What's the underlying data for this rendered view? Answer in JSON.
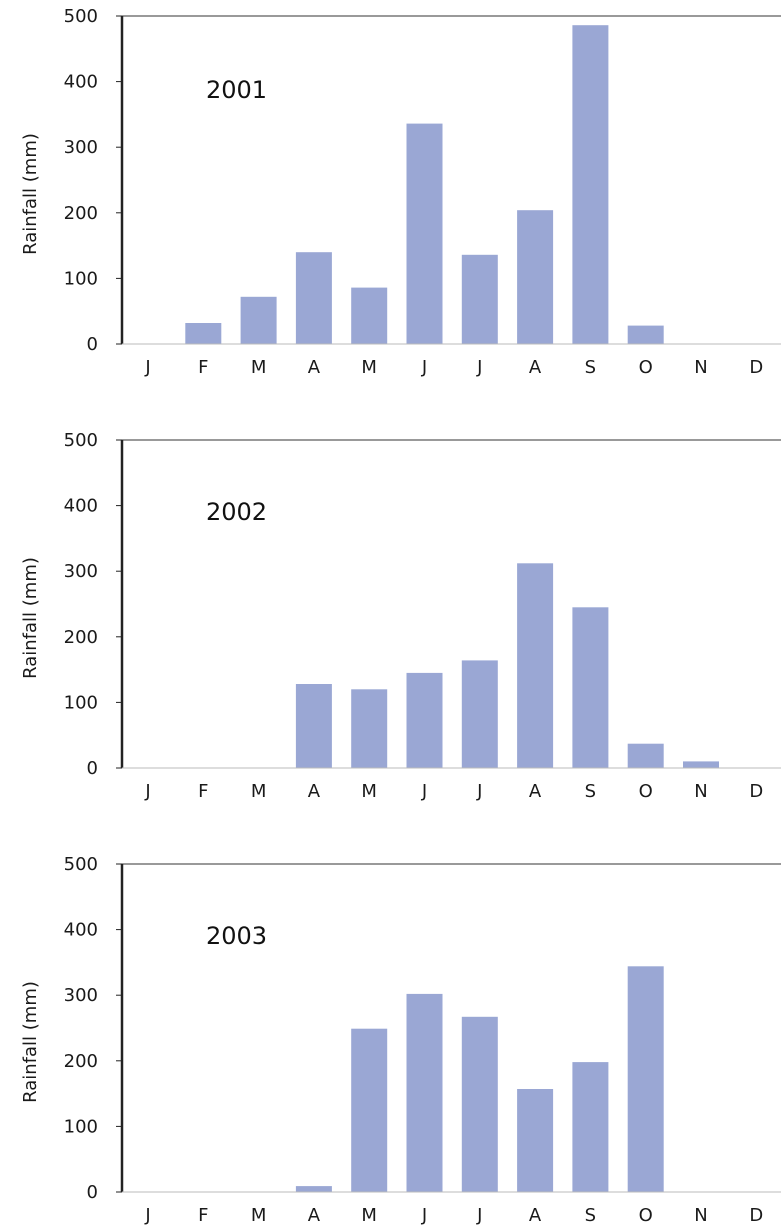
{
  "chart_data": [
    {
      "type": "bar",
      "title": "2001",
      "ylabel": "Rainfall (mm)",
      "xlabel": "",
      "ylim": [
        0,
        500
      ],
      "yticks": [
        "0",
        "100",
        "200",
        "300",
        "400",
        "500"
      ],
      "categories": [
        "J",
        "F",
        "M",
        "A",
        "M",
        "J",
        "J",
        "A",
        "S",
        "O",
        "N",
        "D"
      ],
      "values": [
        0,
        32,
        72,
        140,
        86,
        336,
        136,
        204,
        486,
        28,
        0,
        0
      ],
      "bar_color": "#9aa7d4",
      "grid": false
    },
    {
      "type": "bar",
      "title": "2002",
      "ylabel": "Rainfall (mm)",
      "xlabel": "",
      "ylim": [
        0,
        500
      ],
      "yticks": [
        "0",
        "100",
        "200",
        "300",
        "400",
        "500"
      ],
      "categories": [
        "J",
        "F",
        "M",
        "A",
        "M",
        "J",
        "J",
        "A",
        "S",
        "O",
        "N",
        "D"
      ],
      "values": [
        0,
        0,
        0,
        128,
        120,
        145,
        164,
        312,
        245,
        37,
        10,
        0
      ],
      "bar_color": "#9aa7d4",
      "grid": false
    },
    {
      "type": "bar",
      "title": "2003",
      "ylabel": "Rainfall (mm)",
      "xlabel": "",
      "ylim": [
        0,
        500
      ],
      "yticks": [
        "0",
        "100",
        "200",
        "300",
        "400",
        "500"
      ],
      "categories": [
        "J",
        "F",
        "M",
        "A",
        "M",
        "J",
        "J",
        "A",
        "S",
        "O",
        "N",
        "D"
      ],
      "values": [
        0,
        0,
        0,
        9,
        249,
        302,
        267,
        157,
        198,
        344,
        0,
        0
      ],
      "bar_color": "#9aa7d4",
      "grid": false
    }
  ]
}
